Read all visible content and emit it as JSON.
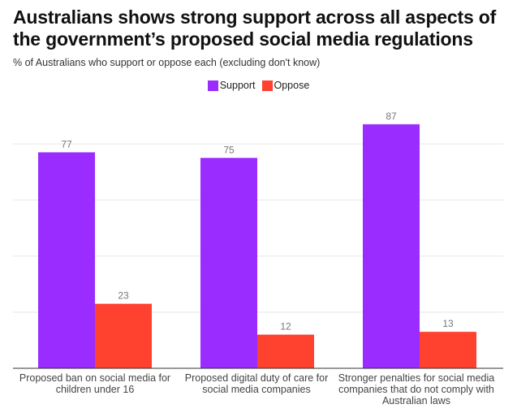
{
  "title": "Australians shows strong support across all aspects of the government’s proposed social media regulations",
  "subtitle": "% of Australians who support or oppose each (excluding don't know)",
  "chart_data": {
    "type": "bar",
    "title": "Australians shows strong support across all aspects of the government’s proposed social media regulations",
    "subtitle": "% of Australians who support or oppose each (excluding don't know)",
    "categories": [
      "Proposed ban on social media for children under 16",
      "Proposed digital duty of care for social media companies",
      "Stronger penalties for social media companies that do not comply with Australian laws"
    ],
    "series": [
      {
        "name": "Support",
        "color": "#9b2cff",
        "values": [
          77,
          75,
          87
        ]
      },
      {
        "name": "Oppose",
        "color": "#ff4130",
        "values": [
          23,
          12,
          13
        ]
      }
    ],
    "xlabel": "",
    "ylabel": "",
    "ylim": [
      0,
      100
    ],
    "gridlines": [
      20,
      40,
      60,
      80
    ],
    "grid": true,
    "legend_position": "top-center",
    "data_labels": true
  }
}
